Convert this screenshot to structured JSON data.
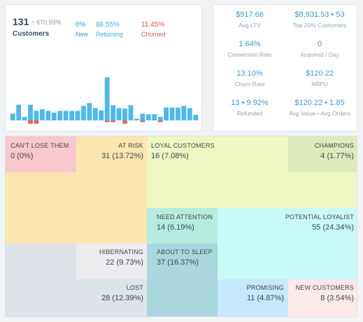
{
  "customers": {
    "count": "131",
    "growth": "670.59%",
    "label": "Customers",
    "new": {
      "value": "0%",
      "label": "New",
      "color": "#3b9bd9"
    },
    "returning": {
      "value": "88.55%",
      "label": "Returning",
      "color": "#3bb0e0"
    },
    "churned": {
      "value": "11.45%",
      "label": "Churned",
      "color": "#e8544a"
    }
  },
  "chart_data": {
    "type": "bar",
    "series": [
      {
        "values": [
          12,
          28,
          6,
          28,
          17,
          20,
          17,
          14,
          17,
          17,
          17,
          17,
          26,
          31,
          22,
          18,
          77,
          27,
          22,
          21,
          27,
          3,
          12,
          11,
          11,
          6,
          23,
          23,
          23,
          26,
          22,
          10
        ]
      },
      {
        "values": [
          0,
          0,
          0,
          -6,
          -6,
          0,
          0,
          0,
          0,
          0,
          0,
          0,
          0,
          0,
          0,
          0,
          -3,
          -3,
          0,
          -6,
          0,
          0,
          -3,
          0,
          0,
          -3,
          0,
          0,
          0,
          0,
          0,
          0
        ]
      }
    ],
    "colors": {
      "positive": "#4fb8ec",
      "negative": "#e8675a"
    }
  },
  "kpis": [
    {
      "value": "$917.66",
      "label": "Avg LTV"
    },
    {
      "value": "$8,931.53 • 53",
      "label": "Top 20% Customers"
    },
    {
      "value": "1.64%",
      "label": "Conversion Rate"
    },
    {
      "value": "0",
      "label": "Acquired / Day"
    },
    {
      "value": "13.10%",
      "label": "Churn Rate"
    },
    {
      "value": "$120.22",
      "label": "ARPU"
    },
    {
      "value": "13 • 9.92%",
      "label": "Refunded"
    },
    {
      "value": "$120.22 • 1.85",
      "label": "Avg Value • Avg Orders"
    }
  ],
  "segments": {
    "cant_lose_them": {
      "label": "CAN'T LOSE THEM",
      "value": "0 (0%)",
      "color": "#f9c8cc"
    },
    "at_risk": {
      "label": "AT RISK",
      "value": "31 (13.72%)",
      "color": "#fde6af"
    },
    "loyal_customers": {
      "label": "LOYAL CUSTOMERS",
      "value": "16 (7.08%)",
      "color": "#eef7c1"
    },
    "champions": {
      "label": "CHAMPIONS",
      "value": "4 (1.77%)",
      "color": "#e0ebbd"
    },
    "need_attention": {
      "label": "NEED ATTENTION",
      "value": "14 (6.19%)",
      "color": "#b6ede0"
    },
    "potential_loyalist": {
      "label": "POTENTIAL LOYALIST",
      "value": "55 (24.34%)",
      "color": "#c8fbf8"
    },
    "hibernating": {
      "label": "HIBERNATING",
      "value": "22 (9.73%)",
      "color": "#ececee"
    },
    "about_to_sleep": {
      "label": "ABOUT TO SLEEP",
      "value": "37 (16.37%)",
      "color": "#aad7de"
    },
    "lost": {
      "label": "LOST",
      "value": "28 (12.39%)",
      "color": "#dde3e9"
    },
    "promising": {
      "label": "PROMISING",
      "value": "11 (4.87%)",
      "color": "#c6e9fd"
    },
    "new_customers": {
      "label": "NEW CUSTOMERS",
      "value": "8 (3.54%)",
      "color": "#fde9e7"
    }
  }
}
